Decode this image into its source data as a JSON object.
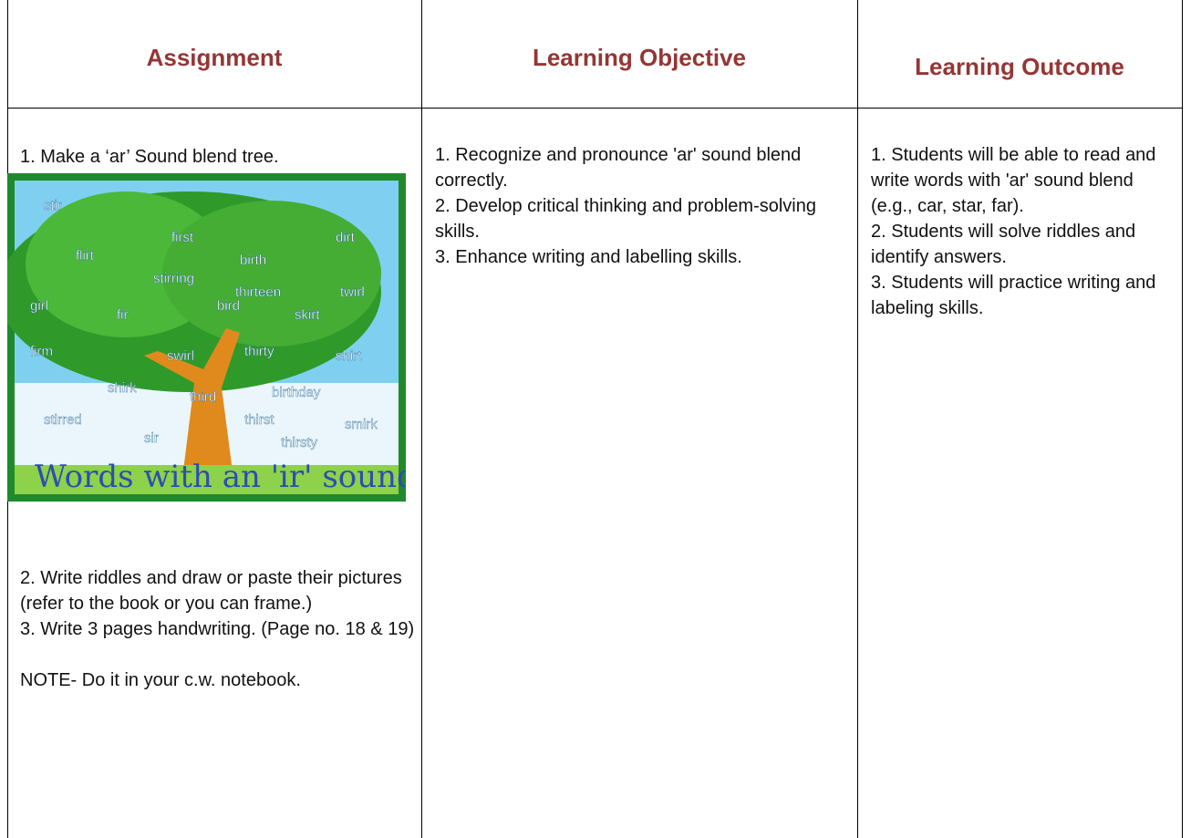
{
  "table": {
    "headers": [
      "Assignment",
      "Learning Objective",
      "Learning Outcome"
    ],
    "assignment": {
      "item1": "1. Make a ‘ar’ Sound blend tree.",
      "image": {
        "caption": "Words with an 'ir' sound",
        "words": [
          "stir",
          "first",
          "dirt",
          "flirt",
          "birth",
          "twirl",
          "stirring",
          "thirteen",
          "girl",
          "fir",
          "bird",
          "skirt",
          "firm",
          "swirl",
          "thirty",
          "shirt",
          "shirk",
          "third",
          "birthday",
          "stirred",
          "sir",
          "thirst",
          "smirk",
          "thirsty"
        ]
      },
      "items": [
        "2. Write riddles and draw or paste their pictures (refer to the book or you can frame.)",
        "3. Write 3 pages handwriting. (Page no. 18 & 19)"
      ],
      "note": "NOTE- Do it in your c.w. notebook."
    },
    "objective": {
      "items": [
        "1. Recognize and pronounce 'ar' sound blend correctly.",
        "2. Develop critical thinking and problem-solving skills.",
        "3. Enhance writing and labelling skills."
      ]
    },
    "outcome": {
      "items": [
        "1. Students will be able to read and write words with 'ar' sound blend (e.g., car, star, far).",
        "2. Students will solve riddles and identify answers.",
        "3. Students will practice writing and labeling skills."
      ]
    }
  }
}
